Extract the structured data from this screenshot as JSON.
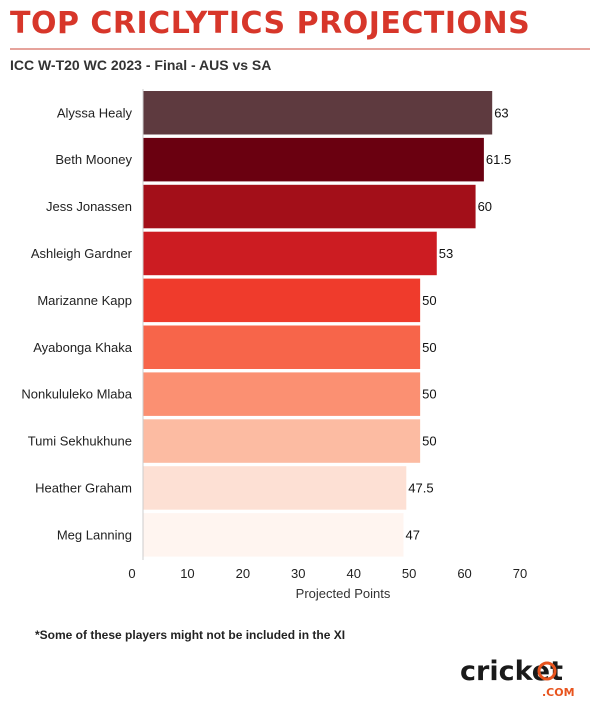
{
  "header": {
    "title": "TOP CRICLYTICS PROJECTIONS",
    "subtitle": "ICC W-T20 WC 2023 - Final - AUS vs SA"
  },
  "footnote": "*Some of these players might not be included in the XI",
  "logo": {
    "main": "cricket",
    "sub": ".COM",
    "accent_color": "#e8541e"
  },
  "chart_data": {
    "type": "bar",
    "orientation": "horizontal",
    "categories": [
      "Alyssa Healy",
      "Beth Mooney",
      "Jess Jonassen",
      "Ashleigh Gardner",
      "Marizanne Kapp",
      "Ayabonga Khaka",
      "Nonkululeko Mlaba",
      "Tumi Sekhukhune",
      "Heather Graham",
      "Meg Lanning"
    ],
    "values": [
      63,
      61.5,
      60,
      53,
      50,
      50,
      50,
      50,
      47.5,
      47
    ],
    "value_labels": [
      "63",
      "61.5",
      "60",
      "53",
      "50",
      "50",
      "50",
      "50",
      "47.5",
      "47"
    ],
    "colors": [
      "#5e3a3f",
      "#6a0010",
      "#a30f19",
      "#cc1c22",
      "#ef3b2c",
      "#f7654a",
      "#fb9072",
      "#fcbba2",
      "#fde0d4",
      "#fff5f0"
    ],
    "xlabel": "Projected Points",
    "xlim": [
      0,
      70
    ],
    "xticks": [
      "0",
      "10",
      "20",
      "30",
      "40",
      "50",
      "60",
      "70"
    ],
    "grid": false,
    "legend": "none"
  }
}
